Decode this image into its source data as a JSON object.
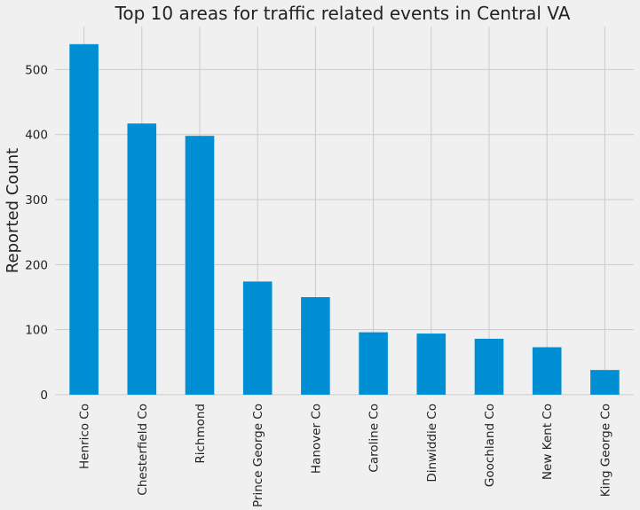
{
  "chart_data": {
    "type": "bar",
    "title": "Top 10 areas for traffic related events in Central VA",
    "xlabel": "",
    "ylabel": "Reported Count",
    "categories": [
      "Henrico Co",
      "Chesterfield Co",
      "Richmond",
      "Prince George Co",
      "Hanover Co",
      "Caroline Co",
      "Dinwiddie Co",
      "Goochland Co",
      "New Kent Co",
      "King George Co"
    ],
    "values": [
      539,
      417,
      398,
      174,
      150,
      96,
      94,
      86,
      73,
      38
    ],
    "yticks": [
      0,
      100,
      200,
      300,
      400,
      500
    ],
    "ylim": [
      0,
      566
    ],
    "grid": true,
    "legend": "none"
  },
  "colors": {
    "bar": "#008fd5",
    "background": "#f0f0f0",
    "grid": "#cbcbcb",
    "text": "#222222"
  }
}
